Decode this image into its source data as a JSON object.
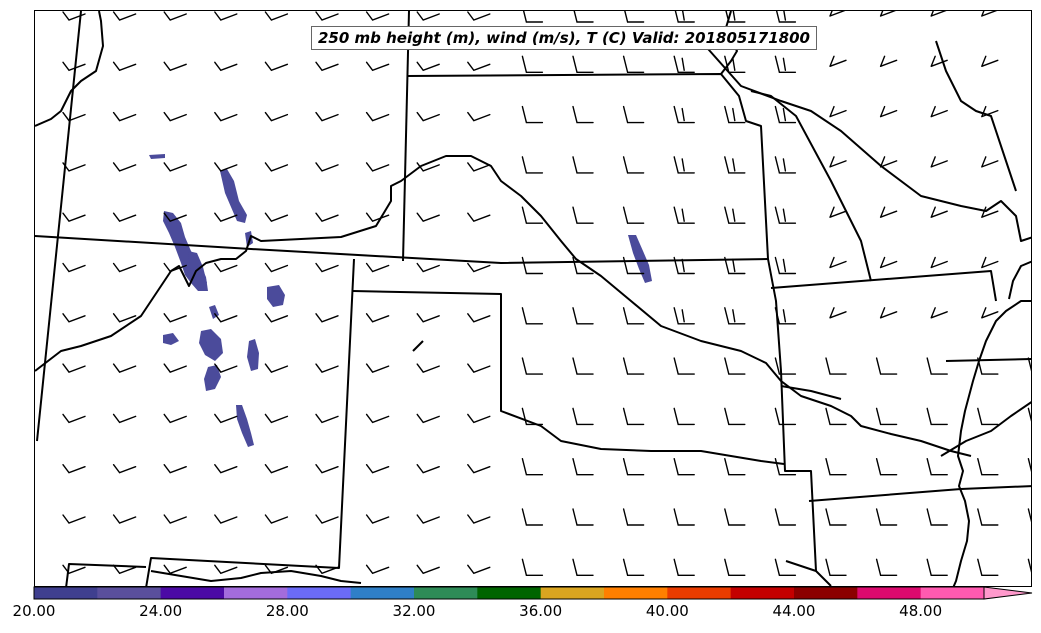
{
  "title": "250 mb height (m), wind (m/s), T (C) Valid: 201805171800",
  "colorbar": {
    "tick_labels": [
      "20.00",
      "24.00",
      "28.00",
      "32.00",
      "36.00",
      "40.00",
      "44.00",
      "48.00"
    ],
    "min": 20,
    "max": 52,
    "step": 2,
    "colors": [
      "#3f3f8f",
      "#5a4f9c",
      "#4b0aa5",
      "#a36cdc",
      "#6b6bf7",
      "#2f7fc7",
      "#2e8b57",
      "#006400",
      "#daa520",
      "#ff7f00",
      "#ea3c00",
      "#c40000",
      "#8b0000",
      "#dc0a6e",
      "#ff5ab0",
      "#ff99cc"
    ],
    "extend": "max"
  },
  "temperature_shading": {
    "color": "#4b4b9b",
    "value_range_c": [
      20,
      22
    ]
  },
  "wind_barbs": {
    "rows": 12,
    "columns": 20,
    "color": "#000000"
  },
  "layers": [
    "state-boundaries",
    "coastlines-rivers",
    "wind-barbs",
    "temperature-shading"
  ]
}
